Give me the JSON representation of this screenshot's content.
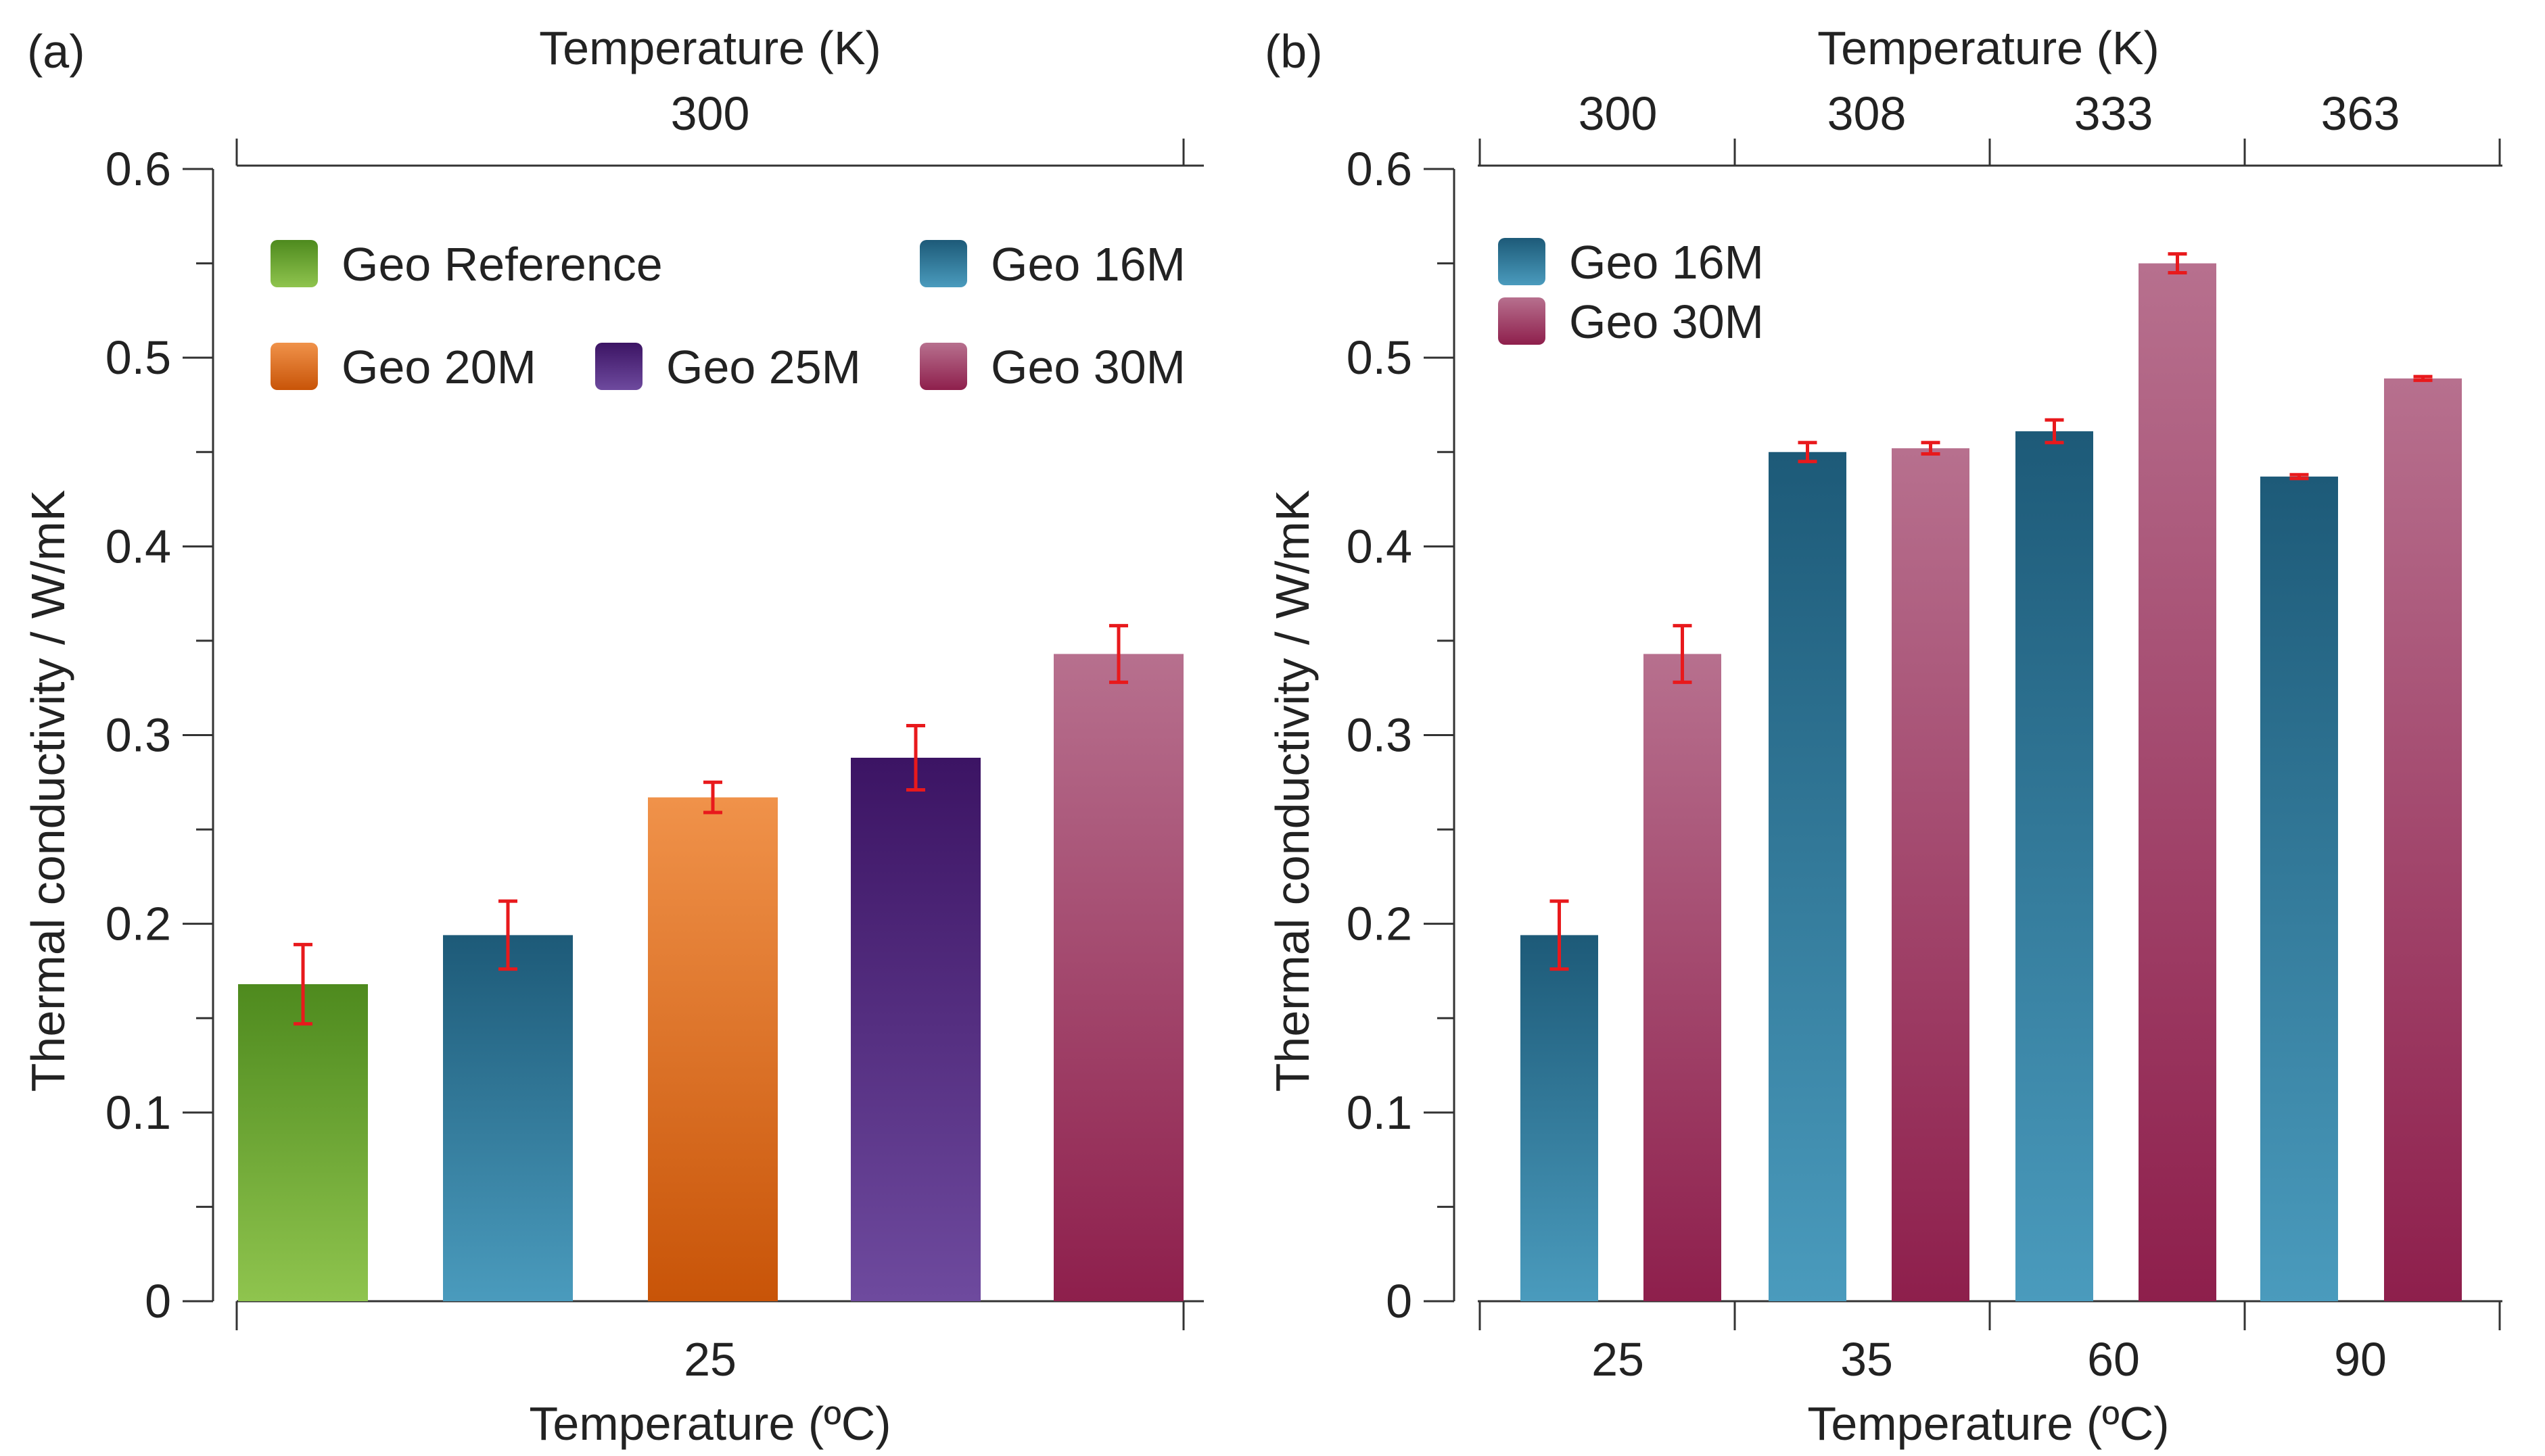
{
  "chart_data": [
    {
      "type": "bar",
      "panel_label": "(a)",
      "top_axis_title": "Temperature (K)",
      "top_tick_labels": [
        "300"
      ],
      "bottom_tick_labels": [
        "25"
      ],
      "xlabel": "Temperature (ºC)",
      "ylabel": "Thermal conductivity / W/mK",
      "ylim": [
        0,
        0.6
      ],
      "y_ticks": [
        "0",
        "0.1",
        "0.2",
        "0.3",
        "0.4",
        "0.5",
        "0.6"
      ],
      "bars": [
        {
          "series": "Geo Reference",
          "value": 0.168,
          "error": 0.021
        },
        {
          "series": "Geo 16M",
          "value": 0.194,
          "error": 0.018
        },
        {
          "series": "Geo 20M",
          "value": 0.267,
          "error": 0.008
        },
        {
          "series": "Geo 25M",
          "value": 0.288,
          "error": 0.017
        },
        {
          "series": "Geo 30M",
          "value": 0.343,
          "error": 0.015
        }
      ],
      "legend": [
        {
          "name": "Geo Reference",
          "color_top": "#4e8a1e",
          "color_bottom": "#8fc44e"
        },
        {
          "name": "Geo 16M",
          "color_top": "#1d5a78",
          "color_bottom": "#4a9bbd"
        },
        {
          "name": "Geo 20M",
          "color_top": "#f0924a",
          "color_bottom": "#c85408"
        },
        {
          "name": "Geo 25M",
          "color_top": "#3c1464",
          "color_bottom": "#6e4a9e"
        },
        {
          "name": "Geo 30M",
          "color_top": "#b7708e",
          "color_bottom": "#8e1f4c"
        }
      ]
    },
    {
      "type": "bar",
      "panel_label": "(b)",
      "top_axis_title": "Temperature (K)",
      "top_tick_labels": [
        "300",
        "308",
        "333",
        "363"
      ],
      "bottom_tick_labels": [
        "25",
        "35",
        "60",
        "90"
      ],
      "xlabel": "Temperature (ºC)",
      "ylabel": "Thermal conductivity / W/mK",
      "ylim": [
        0,
        0.6
      ],
      "y_ticks": [
        "0",
        "0.1",
        "0.2",
        "0.3",
        "0.4",
        "0.5",
        "0.6"
      ],
      "series": [
        {
          "name": "Geo 16M",
          "values": [
            0.194,
            0.45,
            0.461,
            0.437
          ],
          "errors": [
            0.018,
            0.005,
            0.006,
            0.001
          ]
        },
        {
          "name": "Geo 30M",
          "values": [
            0.343,
            0.452,
            0.55,
            0.489
          ],
          "errors": [
            0.015,
            0.003,
            0.005,
            0.001
          ]
        }
      ],
      "legend": [
        {
          "name": "Geo 16M",
          "color_top": "#1d5a78",
          "color_bottom": "#4a9bbd"
        },
        {
          "name": "Geo 30M",
          "color_top": "#b7708e",
          "color_bottom": "#8e1f4c"
        }
      ]
    }
  ]
}
